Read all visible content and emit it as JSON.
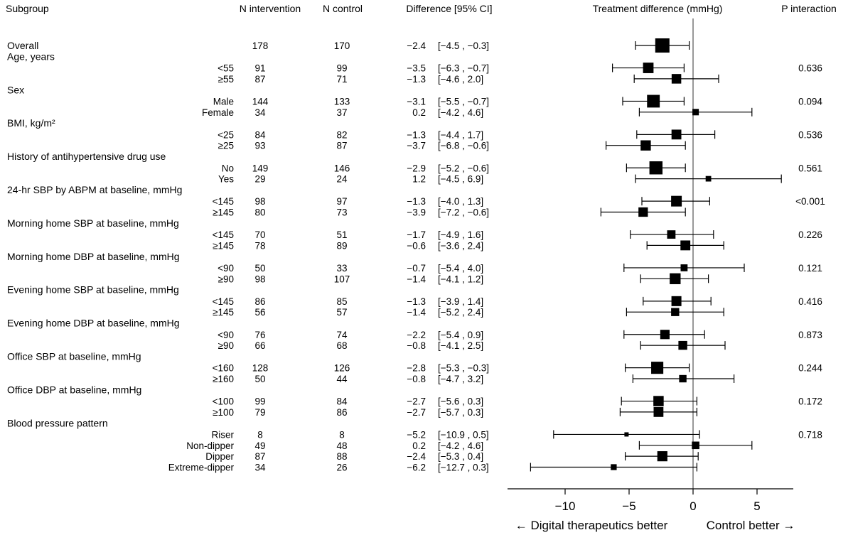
{
  "headers": {
    "subgroup": "Subgroup",
    "n_intervention": "N intervention",
    "n_control": "N control",
    "difference": "Difference [95% CI]",
    "plot": "Treatment difference (mmHg)",
    "p_interaction": "P interaction"
  },
  "axis": {
    "left_label": "← Digital therapeutics better",
    "right_label": "Control better →"
  },
  "chart_data": {
    "type": "forest",
    "title": "Treatment difference (mmHg)",
    "xlim": [
      -13.5,
      8
    ],
    "xticks": [
      -10,
      -5,
      0,
      5
    ],
    "xtick_labels": [
      "−10",
      "−5",
      "0",
      "5"
    ],
    "reference_line": 0,
    "groups": [
      {
        "name": "Overall",
        "p": "",
        "rows": [
          {
            "label": "",
            "ni": "178",
            "nc": "170",
            "est": -2.4,
            "lo": -4.5,
            "hi": -0.3,
            "est_text": "−2.4",
            "ci_text": "[−4.5 , −0.3]"
          }
        ]
      },
      {
        "name": "Age, years",
        "p": "0.636",
        "rows": [
          {
            "label": "<55",
            "ni": "91",
            "nc": "99",
            "est": -3.5,
            "lo": -6.3,
            "hi": -0.7,
            "est_text": "−3.5",
            "ci_text": "[−6.3 , −0.7]"
          },
          {
            "label": "≥55",
            "ni": "87",
            "nc": "71",
            "est": -1.3,
            "lo": -4.6,
            "hi": 2.0,
            "est_text": "−1.3",
            "ci_text": "[−4.6 , 2.0]"
          }
        ]
      },
      {
        "name": "Sex",
        "p": "0.094",
        "rows": [
          {
            "label": "Male",
            "ni": "144",
            "nc": "133",
            "est": -3.1,
            "lo": -5.5,
            "hi": -0.7,
            "est_text": "−3.1",
            "ci_text": "[−5.5 , −0.7]"
          },
          {
            "label": "Female",
            "ni": "34",
            "nc": "37",
            "est": 0.2,
            "lo": -4.2,
            "hi": 4.6,
            "est_text": "0.2",
            "ci_text": "[−4.2 , 4.6]"
          }
        ]
      },
      {
        "name": "BMI, kg/m²",
        "p": "0.536",
        "rows": [
          {
            "label": "<25",
            "ni": "84",
            "nc": "82",
            "est": -1.3,
            "lo": -4.4,
            "hi": 1.7,
            "est_text": "−1.3",
            "ci_text": "[−4.4 , 1.7]"
          },
          {
            "label": "≥25",
            "ni": "93",
            "nc": "87",
            "est": -3.7,
            "lo": -6.8,
            "hi": -0.6,
            "est_text": "−3.7",
            "ci_text": "[−6.8 , −0.6]"
          }
        ]
      },
      {
        "name": "History of antihypertensive drug use",
        "p": "0.561",
        "rows": [
          {
            "label": "No",
            "ni": "149",
            "nc": "146",
            "est": -2.9,
            "lo": -5.2,
            "hi": -0.6,
            "est_text": "−2.9",
            "ci_text": "[−5.2 , −0.6]"
          },
          {
            "label": "Yes",
            "ni": "29",
            "nc": "24",
            "est": 1.2,
            "lo": -4.5,
            "hi": 6.9,
            "est_text": "1.2",
            "ci_text": "[−4.5 , 6.9]"
          }
        ]
      },
      {
        "name": "24-hr SBP by ABPM at baseline, mmHg",
        "p": "<0.001",
        "rows": [
          {
            "label": "<145",
            "ni": "98",
            "nc": "97",
            "est": -1.3,
            "lo": -4.0,
            "hi": 1.3,
            "est_text": "−1.3",
            "ci_text": "[−4.0 , 1.3]"
          },
          {
            "label": "≥145",
            "ni": "80",
            "nc": "73",
            "est": -3.9,
            "lo": -7.2,
            "hi": -0.6,
            "est_text": "−3.9",
            "ci_text": "[−7.2 , −0.6]"
          }
        ]
      },
      {
        "name": "Morning home SBP at baseline, mmHg",
        "p": "0.226",
        "rows": [
          {
            "label": "<145",
            "ni": "70",
            "nc": "51",
            "est": -1.7,
            "lo": -4.9,
            "hi": 1.6,
            "est_text": "−1.7",
            "ci_text": "[−4.9 , 1.6]"
          },
          {
            "label": "≥145",
            "ni": "78",
            "nc": "89",
            "est": -0.6,
            "lo": -3.6,
            "hi": 2.4,
            "est_text": "−0.6",
            "ci_text": "[−3.6 , 2.4]"
          }
        ]
      },
      {
        "name": "Morning home DBP at baseline, mmHg",
        "p": "0.121",
        "rows": [
          {
            "label": "<90",
            "ni": "50",
            "nc": "33",
            "est": -0.7,
            "lo": -5.4,
            "hi": 4.0,
            "est_text": "−0.7",
            "ci_text": "[−5.4 , 4.0]"
          },
          {
            "label": "≥90",
            "ni": "98",
            "nc": "107",
            "est": -1.4,
            "lo": -4.1,
            "hi": 1.2,
            "est_text": "−1.4",
            "ci_text": "[−4.1 , 1.2]"
          }
        ]
      },
      {
        "name": "Evening home SBP at baseline, mmHg",
        "p": "0.416",
        "rows": [
          {
            "label": "<145",
            "ni": "86",
            "nc": "85",
            "est": -1.3,
            "lo": -3.9,
            "hi": 1.4,
            "est_text": "−1.3",
            "ci_text": "[−3.9 , 1.4]"
          },
          {
            "label": "≥145",
            "ni": "56",
            "nc": "57",
            "est": -1.4,
            "lo": -5.2,
            "hi": 2.4,
            "est_text": "−1.4",
            "ci_text": "[−5.2 , 2.4]"
          }
        ]
      },
      {
        "name": "Evening home DBP at baseline, mmHg",
        "p": "0.873",
        "rows": [
          {
            "label": "<90",
            "ni": "76",
            "nc": "74",
            "est": -2.2,
            "lo": -5.4,
            "hi": 0.9,
            "est_text": "−2.2",
            "ci_text": "[−5.4 , 0.9]"
          },
          {
            "label": "≥90",
            "ni": "66",
            "nc": "68",
            "est": -0.8,
            "lo": -4.1,
            "hi": 2.5,
            "est_text": "−0.8",
            "ci_text": "[−4.1 , 2.5]"
          }
        ]
      },
      {
        "name": "Office SBP at baseline, mmHg",
        "p": "0.244",
        "rows": [
          {
            "label": "<160",
            "ni": "128",
            "nc": "126",
            "est": -2.8,
            "lo": -5.3,
            "hi": -0.3,
            "est_text": "−2.8",
            "ci_text": "[−5.3 , −0.3]"
          },
          {
            "label": "≥160",
            "ni": "50",
            "nc": "44",
            "est": -0.8,
            "lo": -4.7,
            "hi": 3.2,
            "est_text": "−0.8",
            "ci_text": "[−4.7 , 3.2]"
          }
        ]
      },
      {
        "name": "Office DBP at baseline, mmHg",
        "p": "0.172",
        "rows": [
          {
            "label": "<100",
            "ni": "99",
            "nc": "84",
            "est": -2.7,
            "lo": -5.6,
            "hi": 0.3,
            "est_text": "−2.7",
            "ci_text": "[−5.6 , 0.3]"
          },
          {
            "label": "≥100",
            "ni": "79",
            "nc": "86",
            "est": -2.7,
            "lo": -5.7,
            "hi": 0.3,
            "est_text": "−2.7",
            "ci_text": "[−5.7 , 0.3]"
          }
        ]
      },
      {
        "name": "Blood pressure pattern",
        "p": "0.718",
        "rows": [
          {
            "label": "Riser",
            "ni": "8",
            "nc": "8",
            "est": -5.2,
            "lo": -10.9,
            "hi": 0.5,
            "est_text": "−5.2",
            "ci_text": "[−10.9 , 0.5]"
          },
          {
            "label": "Non-dipper",
            "ni": "49",
            "nc": "48",
            "est": 0.2,
            "lo": -4.2,
            "hi": 4.6,
            "est_text": "0.2",
            "ci_text": "[−4.2 , 4.6]"
          },
          {
            "label": "Dipper",
            "ni": "87",
            "nc": "88",
            "est": -2.4,
            "lo": -5.3,
            "hi": 0.4,
            "est_text": "−2.4",
            "ci_text": "[−5.3 , 0.4]"
          },
          {
            "label": "Extreme-dipper",
            "ni": "34",
            "nc": "26",
            "est": -6.2,
            "lo": -12.7,
            "hi": 0.3,
            "est_text": "−6.2",
            "ci_text": "[−12.7 , 0.3]"
          }
        ]
      }
    ]
  }
}
